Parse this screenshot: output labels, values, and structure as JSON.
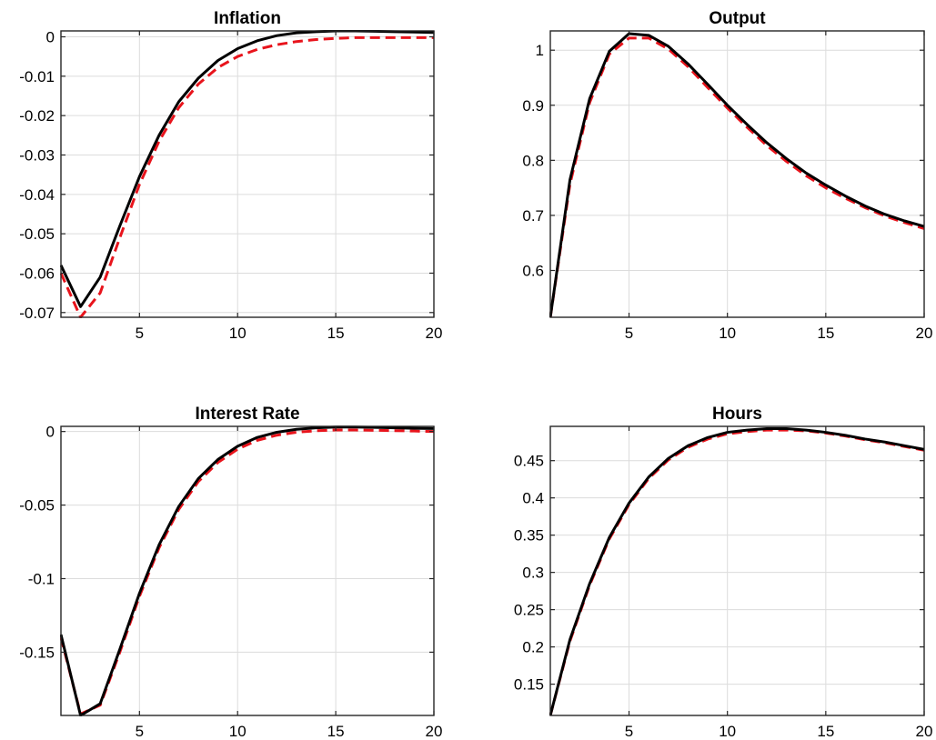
{
  "chart_data": [
    {
      "type": "line",
      "title": "Inflation",
      "x": [
        1,
        2,
        3,
        4,
        5,
        6,
        7,
        8,
        9,
        10,
        11,
        12,
        13,
        14,
        15,
        16,
        17,
        18,
        19,
        20
      ],
      "xlim": [
        1,
        20
      ],
      "ylim": [
        -0.0712,
        0.0015
      ],
      "xticks": [
        5,
        10,
        15,
        20
      ],
      "xtick_labels": [
        "5",
        "10",
        "15",
        "20"
      ],
      "yticks": [
        0,
        -0.01,
        -0.02,
        -0.03,
        -0.04,
        -0.05,
        -0.06,
        -0.07
      ],
      "ytick_labels": [
        "0",
        "-0.01",
        "-0.02",
        "-0.03",
        "-0.04",
        "-0.05",
        "-0.06",
        "-0.07"
      ],
      "grid": true,
      "series": [
        {
          "style": "solid",
          "color": "#000000",
          "values": [
            -0.058,
            -0.0685,
            -0.061,
            -0.048,
            -0.0355,
            -0.025,
            -0.0165,
            -0.0105,
            -0.006,
            -0.003,
            -0.001,
            0.0003,
            0.001,
            0.0013,
            0.0015,
            0.0015,
            0.0014,
            0.0013,
            0.0012,
            0.0011
          ]
        },
        {
          "style": "dashed",
          "color": "#e8141c",
          "values": [
            -0.06,
            -0.0712,
            -0.065,
            -0.051,
            -0.0375,
            -0.0265,
            -0.018,
            -0.012,
            -0.0078,
            -0.005,
            -0.0032,
            -0.002,
            -0.0012,
            -0.0007,
            -0.0004,
            -0.0002,
            -0.0002,
            -0.0002,
            -0.0002,
            -0.0002
          ]
        }
      ]
    },
    {
      "type": "line",
      "title": "Output",
      "x": [
        1,
        2,
        3,
        4,
        5,
        6,
        7,
        8,
        9,
        10,
        11,
        12,
        13,
        14,
        15,
        16,
        17,
        18,
        19,
        20
      ],
      "xlim": [
        1,
        20
      ],
      "ylim": [
        0.515,
        1.035
      ],
      "xticks": [
        5,
        10,
        15,
        20
      ],
      "xtick_labels": [
        "5",
        "10",
        "15",
        "20"
      ],
      "yticks": [
        1,
        0.9,
        0.8,
        0.7,
        0.6
      ],
      "ytick_labels": [
        "1",
        "0.9",
        "0.8",
        "0.7",
        "0.6"
      ],
      "grid": true,
      "series": [
        {
          "style": "solid",
          "color": "#000000",
          "values": [
            0.515,
            0.765,
            0.912,
            0.998,
            1.03,
            1.027,
            1.007,
            0.975,
            0.938,
            0.9,
            0.865,
            0.832,
            0.803,
            0.777,
            0.755,
            0.735,
            0.717,
            0.702,
            0.69,
            0.68
          ]
        },
        {
          "style": "dashed",
          "color": "#e8141c",
          "values": [
            0.515,
            0.757,
            0.905,
            0.993,
            1.022,
            1.022,
            1.002,
            0.97,
            0.932,
            0.895,
            0.86,
            0.827,
            0.798,
            0.772,
            0.75,
            0.731,
            0.714,
            0.699,
            0.687,
            0.676
          ]
        }
      ]
    },
    {
      "type": "line",
      "title": "Interest Rate",
      "x": [
        1,
        2,
        3,
        4,
        5,
        6,
        7,
        8,
        9,
        10,
        11,
        12,
        13,
        14,
        15,
        16,
        17,
        18,
        19,
        20
      ],
      "xlim": [
        1,
        20
      ],
      "ylim": [
        -0.193,
        0.0035
      ],
      "xticks": [
        5,
        10,
        15,
        20
      ],
      "xtick_labels": [
        "5",
        "10",
        "15",
        "20"
      ],
      "yticks": [
        0,
        -0.05,
        -0.1,
        -0.15
      ],
      "ytick_labels": [
        "0",
        "-0.05",
        "-0.1",
        "-0.15"
      ],
      "grid": true,
      "series": [
        {
          "style": "solid",
          "color": "#000000",
          "values": [
            -0.138,
            -0.193,
            -0.185,
            -0.148,
            -0.11,
            -0.077,
            -0.051,
            -0.032,
            -0.019,
            -0.01,
            -0.004,
            -0.0005,
            0.0015,
            0.0025,
            0.003,
            0.003,
            0.0028,
            0.0025,
            0.0022,
            0.002
          ]
        },
        {
          "style": "dashed",
          "color": "#e8141c",
          "values": [
            -0.14,
            -0.192,
            -0.186,
            -0.15,
            -0.112,
            -0.079,
            -0.053,
            -0.034,
            -0.021,
            -0.012,
            -0.006,
            -0.0025,
            -0.0005,
            0.0005,
            0.001,
            0.001,
            0.0008,
            0.0006,
            0.0003,
            0.0
          ]
        }
      ]
    },
    {
      "type": "line",
      "title": "Hours",
      "x": [
        1,
        2,
        3,
        4,
        5,
        6,
        7,
        8,
        9,
        10,
        11,
        12,
        13,
        14,
        15,
        16,
        17,
        18,
        19,
        20
      ],
      "xlim": [
        1,
        20
      ],
      "ylim": [
        0.108,
        0.496
      ],
      "xticks": [
        5,
        10,
        15,
        20
      ],
      "xtick_labels": [
        "5",
        "10",
        "15",
        "20"
      ],
      "yticks": [
        0.45,
        0.4,
        0.35,
        0.3,
        0.25,
        0.2,
        0.15
      ],
      "ytick_labels": [
        "0.45",
        "0.4",
        "0.35",
        "0.3",
        "0.25",
        "0.2",
        "0.15"
      ],
      "grid": true,
      "series": [
        {
          "style": "solid",
          "color": "#000000",
          "values": [
            0.108,
            0.21,
            0.285,
            0.347,
            0.393,
            0.428,
            0.453,
            0.47,
            0.481,
            0.488,
            0.491,
            0.493,
            0.493,
            0.491,
            0.488,
            0.484,
            0.479,
            0.475,
            0.47,
            0.465
          ]
        },
        {
          "style": "dashed",
          "color": "#e8141c",
          "values": [
            0.108,
            0.208,
            0.283,
            0.345,
            0.391,
            0.426,
            0.451,
            0.468,
            0.479,
            0.486,
            0.489,
            0.491,
            0.491,
            0.49,
            0.487,
            0.483,
            0.478,
            0.474,
            0.469,
            0.464
          ]
        }
      ]
    }
  ]
}
